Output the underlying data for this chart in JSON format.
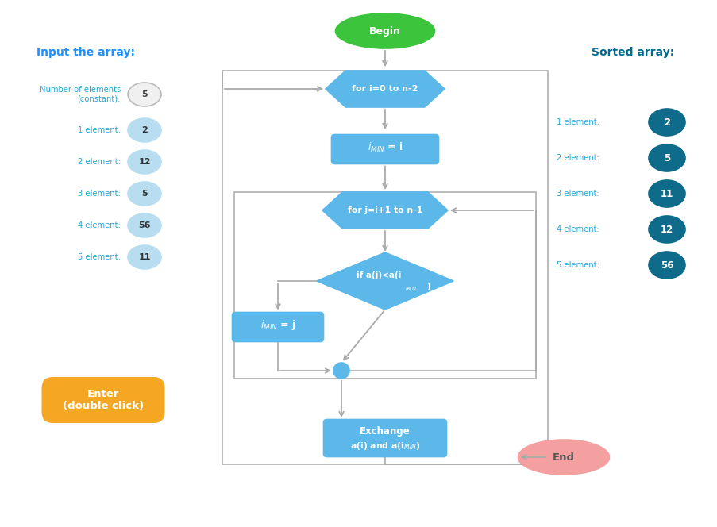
{
  "bg_color": "#ffffff",
  "input_title": "Input the array:",
  "input_title_color": "#1E90FF",
  "input_label_color": "#29A8D8",
  "input_elements": [
    {
      "label": "Number of elements\n(constant):",
      "value": "5",
      "bubble_color": "#f0f0f0",
      "border_color": "#bbbbbb",
      "text_color": "#444444"
    },
    {
      "label": "1 element:",
      "value": "2",
      "bubble_color": "#B8DCF0",
      "border_color": "#B8DCF0",
      "text_color": "#333333"
    },
    {
      "label": "2 element:",
      "value": "12",
      "bubble_color": "#B8DCF0",
      "border_color": "#B8DCF0",
      "text_color": "#333333"
    },
    {
      "label": "3 element:",
      "value": "5",
      "bubble_color": "#B8DCF0",
      "border_color": "#B8DCF0",
      "text_color": "#333333"
    },
    {
      "label": "4 element:",
      "value": "56",
      "bubble_color": "#B8DCF0",
      "border_color": "#B8DCF0",
      "text_color": "#333333"
    },
    {
      "label": "5 element:",
      "value": "11",
      "bubble_color": "#B8DCF0",
      "border_color": "#B8DCF0",
      "text_color": "#333333"
    }
  ],
  "enter_button_color": "#F5A623",
  "enter_button_text": "Enter\n(double click)",
  "sorted_title": "Sorted array:",
  "sorted_title_color": "#006B8F",
  "sorted_label_color": "#29A8D8",
  "sorted_elements": [
    {
      "label": "1 element:",
      "value": "2"
    },
    {
      "label": "2 element:",
      "value": "5"
    },
    {
      "label": "3 element:",
      "value": "11"
    },
    {
      "label": "4 element:",
      "value": "12"
    },
    {
      "label": "5 element:",
      "value": "56"
    }
  ],
  "sorted_bubble_color": "#0E6B8A",
  "sorted_text_color": "#ffffff",
  "flow_color": "#5BB8E8",
  "begin_color": "#3DC43D",
  "end_color": "#F4A0A0",
  "arrow_color": "#aaaaaa",
  "connector_color": "#5BB8E8"
}
